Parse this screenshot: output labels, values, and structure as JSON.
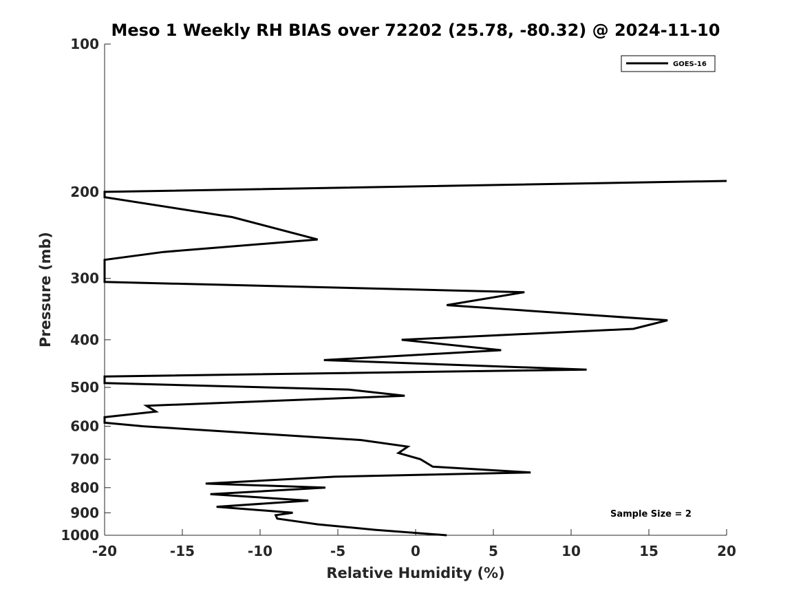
{
  "chart_data": {
    "type": "line",
    "title": "Meso 1 Weekly RH BIAS over 72202 (25.78, -80.32) @ 2024-11-10",
    "xlabel": "Relative Humidity (%)",
    "ylabel": "Pressure (mb)",
    "xlim": [
      -20,
      20
    ],
    "ylim": [
      100,
      1000
    ],
    "y_scale": "log",
    "y_reversed": true,
    "x_ticks": [
      "-20",
      "-15",
      "-10",
      "-5",
      "0",
      "5",
      "10",
      "15",
      "20"
    ],
    "x_tick_values": [
      -20,
      -15,
      -10,
      -5,
      0,
      5,
      10,
      15,
      20
    ],
    "y_ticks": [
      "100",
      "200",
      "300",
      "400",
      "500",
      "600",
      "700",
      "800",
      "900",
      "1000"
    ],
    "y_tick_values": [
      100,
      200,
      300,
      400,
      500,
      600,
      700,
      800,
      900,
      1000
    ],
    "grid": false,
    "legend_position": "top-right",
    "series": [
      {
        "name": "GOES-16",
        "color": "#000000",
        "points": [
          {
            "p": 1000,
            "x": 2.0
          },
          {
            "p": 975,
            "x": -2.6
          },
          {
            "p": 950,
            "x": -6.3
          },
          {
            "p": 925,
            "x": -8.9
          },
          {
            "p": 910,
            "x": -9.0
          },
          {
            "p": 900,
            "x": -7.9
          },
          {
            "p": 875,
            "x": -12.8
          },
          {
            "p": 850,
            "x": -6.9
          },
          {
            "p": 825,
            "x": -13.2
          },
          {
            "p": 800,
            "x": -5.8
          },
          {
            "p": 785,
            "x": -13.5
          },
          {
            "p": 760,
            "x": -5.2
          },
          {
            "p": 745,
            "x": 7.4
          },
          {
            "p": 725,
            "x": 1.1
          },
          {
            "p": 700,
            "x": 0.3
          },
          {
            "p": 680,
            "x": -1.1
          },
          {
            "p": 660,
            "x": -0.5
          },
          {
            "p": 640,
            "x": -3.5
          },
          {
            "p": 600,
            "x": -17.5
          },
          {
            "p": 590,
            "x": -20.0
          },
          {
            "p": 575,
            "x": -20.0
          },
          {
            "p": 560,
            "x": -16.7
          },
          {
            "p": 545,
            "x": -17.3
          },
          {
            "p": 520,
            "x": -0.7
          },
          {
            "p": 505,
            "x": -4.3
          },
          {
            "p": 490,
            "x": -20.0
          },
          {
            "p": 475,
            "x": -20.0
          },
          {
            "p": 460,
            "x": 11.0
          },
          {
            "p": 440,
            "x": -5.9
          },
          {
            "p": 420,
            "x": 5.5
          },
          {
            "p": 400,
            "x": -0.9
          },
          {
            "p": 380,
            "x": 14.0
          },
          {
            "p": 365,
            "x": 16.2
          },
          {
            "p": 340,
            "x": 2.0
          },
          {
            "p": 320,
            "x": 7.0
          },
          {
            "p": 305,
            "x": -20.0
          },
          {
            "p": 300,
            "x": -20.0
          },
          {
            "p": 275,
            "x": -20.0
          },
          {
            "p": 265,
            "x": -16.2
          },
          {
            "p": 250,
            "x": -6.3
          },
          {
            "p": 225,
            "x": -11.8
          },
          {
            "p": 205,
            "x": -20.0
          },
          {
            "p": 200,
            "x": -20.0
          },
          {
            "p": 190,
            "x": 20.0
          }
        ]
      }
    ],
    "annotation": "Sample Size = 2"
  }
}
